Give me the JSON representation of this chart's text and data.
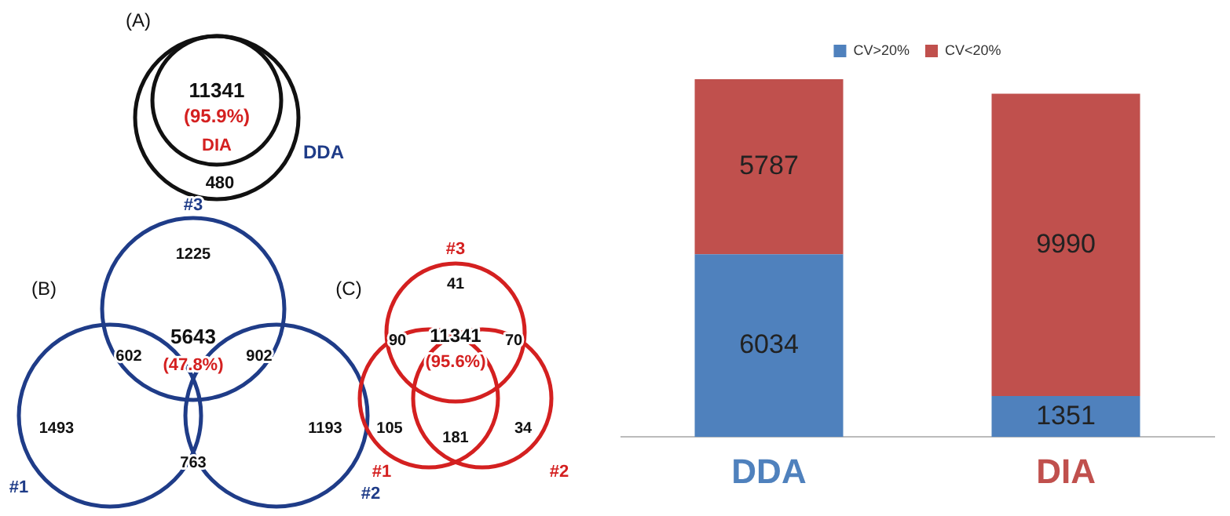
{
  "chart_data": [
    {
      "type": "other",
      "annotations": [
        "(A)",
        "11341",
        "(95.9%)",
        "DIA",
        "DDA",
        "480",
        "(B)",
        "#3",
        "1225",
        "602",
        "902",
        "5643",
        "(47.8%)",
        "1493",
        "1193",
        "763",
        "#1",
        "#2",
        "(C)",
        "#3",
        "41",
        "90",
        "70",
        "11341",
        "(95.6%)",
        "105",
        "34",
        "181",
        "#1",
        "#2"
      ]
    },
    {
      "type": "bar",
      "categories": [
        "DDA",
        "DIA"
      ],
      "stacked": true,
      "data_labels": true,
      "legend": "top",
      "grid": false,
      "series": [
        {
          "name": "CV>20%",
          "color": "#4f81bd",
          "values": [
            6034,
            1351
          ]
        },
        {
          "name": "CV<20%",
          "color": "#c0504d",
          "values": [
            5787,
            9990
          ]
        }
      ]
    }
  ]
}
